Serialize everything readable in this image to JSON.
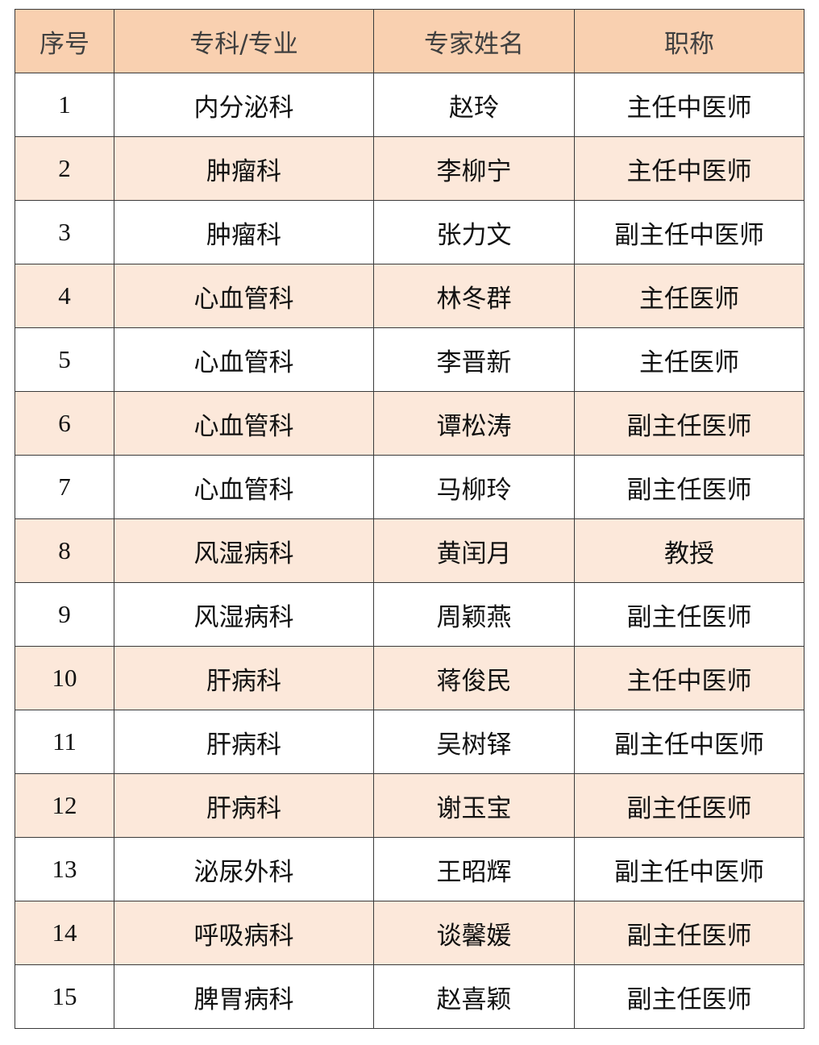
{
  "table": {
    "headers": [
      "序号",
      "专科/专业",
      "专家姓名",
      "职称"
    ],
    "rows": [
      [
        "1",
        "内分泌科",
        "赵玲",
        "主任中医师"
      ],
      [
        "2",
        "肿瘤科",
        "李柳宁",
        "主任中医师"
      ],
      [
        "3",
        "肿瘤科",
        "张力文",
        "副主任中医师"
      ],
      [
        "4",
        "心血管科",
        "林冬群",
        "主任医师"
      ],
      [
        "5",
        "心血管科",
        "李晋新",
        "主任医师"
      ],
      [
        "6",
        "心血管科",
        "谭松涛",
        "副主任医师"
      ],
      [
        "7",
        "心血管科",
        "马柳玲",
        "副主任医师"
      ],
      [
        "8",
        "风湿病科",
        "黄闰月",
        "教授"
      ],
      [
        "9",
        "风湿病科",
        "周颖燕",
        "副主任医师"
      ],
      [
        "10",
        "肝病科",
        "蒋俊民",
        "主任中医师"
      ],
      [
        "11",
        "肝病科",
        "吴树铎",
        "副主任中医师"
      ],
      [
        "12",
        "肝病科",
        "谢玉宝",
        "副主任医师"
      ],
      [
        "13",
        "泌尿外科",
        "王昭辉",
        "副主任中医师"
      ],
      [
        "14",
        "呼吸病科",
        "谈馨媛",
        "副主任医师"
      ],
      [
        "15",
        "脾胃病科",
        "赵喜颖",
        "副主任医师"
      ]
    ]
  },
  "colors": {
    "header_bg": "#f9d0b0",
    "alt_row_bg": "#fce8da",
    "border": "#3a3a3a"
  }
}
